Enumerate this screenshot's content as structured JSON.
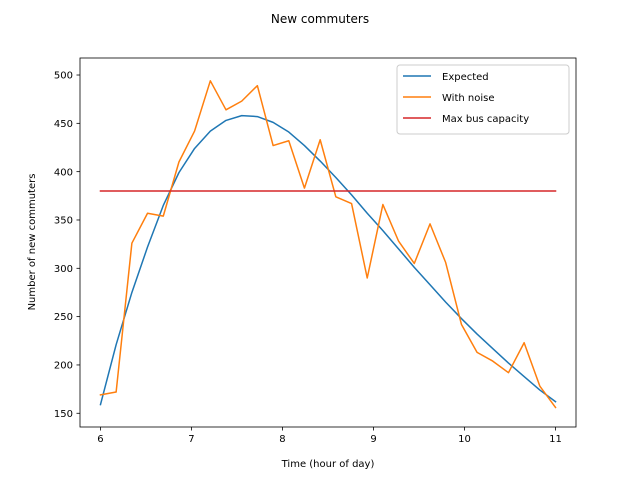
{
  "chart_data": {
    "type": "line",
    "title": "New commuters",
    "xlabel": "Time (hour of day)",
    "ylabel": "Number of new commuters",
    "xlim": [
      5.775,
      11.225
    ],
    "ylim": [
      135.8,
      517.6
    ],
    "xticks": [
      6,
      7,
      8,
      9,
      10,
      11
    ],
    "yticks": [
      150,
      200,
      250,
      300,
      350,
      400,
      450,
      500
    ],
    "grid": false,
    "legend_position": "top-right",
    "series": [
      {
        "name": "Expected",
        "color": "#1f77b4",
        "x": [
          6.0,
          6.172,
          6.345,
          6.517,
          6.69,
          6.862,
          7.034,
          7.207,
          7.379,
          7.552,
          7.724,
          7.897,
          8.069,
          8.241,
          8.414,
          8.586,
          8.759,
          8.931,
          9.103,
          9.276,
          9.448,
          9.621,
          9.793,
          9.966,
          10.138,
          10.31,
          10.483,
          10.655,
          10.828,
          11.0
        ],
        "y": [
          159,
          221,
          275,
          322,
          365,
          399,
          424,
          442,
          453,
          458,
          457,
          451,
          441,
          427,
          411,
          394,
          376,
          357,
          339,
          320,
          301,
          283,
          265,
          248,
          232,
          217,
          202,
          188,
          174,
          162
        ]
      },
      {
        "name": "With noise",
        "color": "#ff7f0e",
        "x": [
          6.0,
          6.172,
          6.345,
          6.517,
          6.69,
          6.862,
          7.034,
          7.207,
          7.379,
          7.552,
          7.724,
          7.897,
          8.069,
          8.241,
          8.414,
          8.586,
          8.759,
          8.931,
          9.103,
          9.276,
          9.448,
          9.621,
          9.793,
          9.966,
          10.138,
          10.31,
          10.483,
          10.655,
          10.828,
          11.0
        ],
        "y": [
          169,
          172,
          326,
          357,
          354,
          410,
          442,
          494,
          464,
          473,
          489,
          427,
          432,
          383,
          433,
          374,
          367,
          290,
          366,
          328,
          305,
          346,
          306,
          242,
          213,
          204,
          192,
          223,
          178,
          156
        ]
      },
      {
        "name": "Max bus capacity",
        "color": "#d62728",
        "x": [
          6.0,
          11.0
        ],
        "y": [
          380,
          380
        ]
      }
    ]
  }
}
